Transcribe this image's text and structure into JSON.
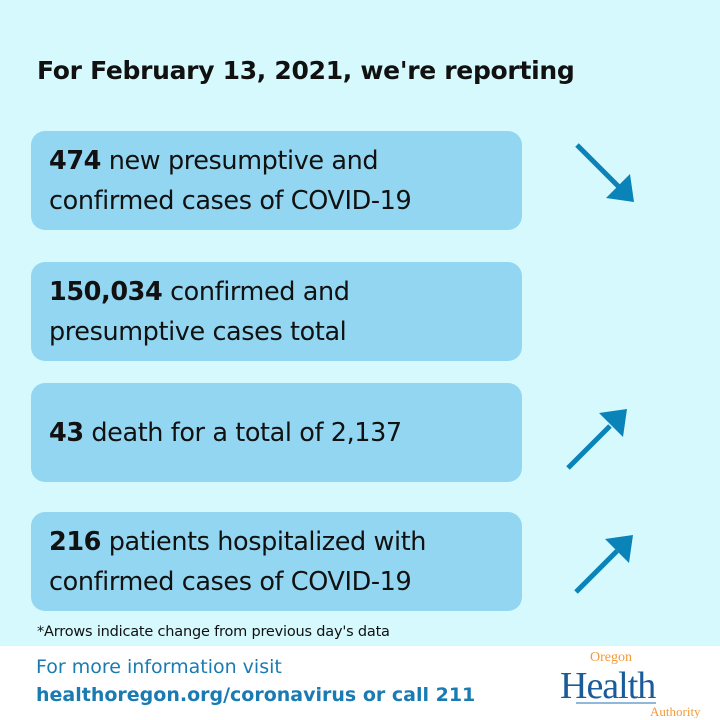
{
  "title": "For February 13, 2021, we're reporting",
  "stats": [
    {
      "num": "474",
      "line1": " new presumptive and",
      "line2": "confirmed cases of COVID-19",
      "trend": "down"
    },
    {
      "num": "150,034",
      "line1": " confirmed and",
      "line2": "presumptive cases total",
      "trend": "none"
    },
    {
      "num": "43",
      "line1": " death for a total of 2,137",
      "line2": "",
      "trend": "up"
    },
    {
      "num": "216",
      "line1": " patients hospitalized with",
      "line2": "confirmed cases of COVID-19",
      "trend": "up"
    }
  ],
  "note": "*Arrows indicate change from previous day's data",
  "footer": {
    "line1": "For more information visit",
    "line2": "healthoregon.org/coronavirus or call 211"
  },
  "logo": {
    "top": "Oregon",
    "main": "Health",
    "bottom": "Authority"
  },
  "colors": {
    "background": "#d6f9fd",
    "box": "#93d6f1",
    "arrow": "#0a83b8",
    "footer_text": "#1a7bb3",
    "logo_blue": "#1a5b9a",
    "logo_orange": "#f39a3a"
  }
}
